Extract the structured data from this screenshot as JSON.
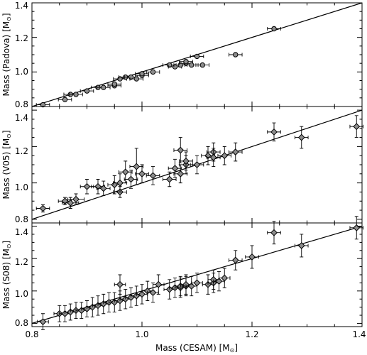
{
  "chart_data": {
    "type": "scatter",
    "x_range": [
      0.8,
      1.4
    ],
    "xlabel": "Mass (CESAM) [M",
    "xlabel_symbol": "⊙",
    "xlabel_suffix": "]",
    "x_ticks": [
      "0.8",
      "1.0",
      "1.2",
      "1.4"
    ],
    "reference_line": "y = x",
    "grid": false,
    "panels": [
      {
        "ylabel": "Mass (Padova) [M",
        "ylabel_symbol": "⊙",
        "ylabel_suffix": "]",
        "y_range": [
          0.8,
          1.4
        ],
        "y_ticks": [
          "0.8",
          "1.0",
          "1.2",
          "1.4"
        ],
        "marker": "circle",
        "points": [
          {
            "x": 0.82,
            "y": 0.81,
            "xerr": 0.012,
            "yerr": 0.005
          },
          {
            "x": 0.86,
            "y": 0.84,
            "xerr": 0.012,
            "yerr": 0.005
          },
          {
            "x": 0.87,
            "y": 0.87,
            "xerr": 0.012,
            "yerr": 0.005
          },
          {
            "x": 0.88,
            "y": 0.87,
            "xerr": 0.012,
            "yerr": 0.005
          },
          {
            "x": 0.9,
            "y": 0.89,
            "xerr": 0.012,
            "yerr": 0.005
          },
          {
            "x": 0.92,
            "y": 0.91,
            "xerr": 0.012,
            "yerr": 0.005
          },
          {
            "x": 0.93,
            "y": 0.91,
            "xerr": 0.012,
            "yerr": 0.005
          },
          {
            "x": 0.95,
            "y": 0.92,
            "xerr": 0.012,
            "yerr": 0.005
          },
          {
            "x": 0.95,
            "y": 0.93,
            "xerr": 0.012,
            "yerr": 0.005
          },
          {
            "x": 0.96,
            "y": 0.96,
            "xerr": 0.012,
            "yerr": 0.005
          },
          {
            "x": 0.97,
            "y": 0.97,
            "xerr": 0.012,
            "yerr": 0.005
          },
          {
            "x": 0.98,
            "y": 0.97,
            "xerr": 0.012,
            "yerr": 0.005
          },
          {
            "x": 0.99,
            "y": 0.96,
            "xerr": 0.012,
            "yerr": 0.005
          },
          {
            "x": 1.0,
            "y": 0.98,
            "xerr": 0.012,
            "yerr": 0.005
          },
          {
            "x": 1.0,
            "y": 0.99,
            "xerr": 0.012,
            "yerr": 0.005
          },
          {
            "x": 1.02,
            "y": 1.0,
            "xerr": 0.012,
            "yerr": 0.005
          },
          {
            "x": 1.05,
            "y": 1.04,
            "xerr": 0.012,
            "yerr": 0.005
          },
          {
            "x": 1.06,
            "y": 1.03,
            "xerr": 0.012,
            "yerr": 0.005
          },
          {
            "x": 1.07,
            "y": 1.04,
            "xerr": 0.012,
            "yerr": 0.005
          },
          {
            "x": 1.08,
            "y": 1.05,
            "xerr": 0.012,
            "yerr": 0.005
          },
          {
            "x": 1.08,
            "y": 1.06,
            "xerr": 0.012,
            "yerr": 0.005
          },
          {
            "x": 1.09,
            "y": 1.04,
            "xerr": 0.012,
            "yerr": 0.005
          },
          {
            "x": 1.1,
            "y": 1.09,
            "xerr": 0.012,
            "yerr": 0.005
          },
          {
            "x": 1.11,
            "y": 1.04,
            "xerr": 0.012,
            "yerr": 0.005
          },
          {
            "x": 1.17,
            "y": 1.1,
            "xerr": 0.012,
            "yerr": 0.005
          },
          {
            "x": 1.24,
            "y": 1.25,
            "xerr": 0.012,
            "yerr": 0.005
          }
        ]
      },
      {
        "ylabel": "Mass (V05) [M",
        "ylabel_symbol": "⊙",
        "ylabel_suffix": "]",
        "y_range": [
          0.78,
          1.42
        ],
        "y_ticks": [
          "0.8",
          "1.0",
          "1.2",
          "1.4"
        ],
        "marker": "diamond",
        "points": [
          {
            "x": 0.82,
            "y": 0.86,
            "xerr": 0.012,
            "yerr": 0.02
          },
          {
            "x": 0.86,
            "y": 0.9,
            "xerr": 0.012,
            "yerr": 0.02
          },
          {
            "x": 0.87,
            "y": 0.89,
            "xerr": 0.015,
            "yerr": 0.03
          },
          {
            "x": 0.88,
            "y": 0.91,
            "xerr": 0.015,
            "yerr": 0.03
          },
          {
            "x": 0.9,
            "y": 0.98,
            "xerr": 0.012,
            "yerr": 0.04
          },
          {
            "x": 0.92,
            "y": 0.98,
            "xerr": 0.012,
            "yerr": 0.04
          },
          {
            "x": 0.93,
            "y": 0.97,
            "xerr": 0.012,
            "yerr": 0.04
          },
          {
            "x": 0.95,
            "y": 0.99,
            "xerr": 0.012,
            "yerr": 0.05
          },
          {
            "x": 0.96,
            "y": 0.95,
            "xerr": 0.012,
            "yerr": 0.03
          },
          {
            "x": 0.96,
            "y": 1.0,
            "xerr": 0.012,
            "yerr": 0.05
          },
          {
            "x": 0.97,
            "y": 1.06,
            "xerr": 0.012,
            "yerr": 0.06
          },
          {
            "x": 0.98,
            "y": 1.02,
            "xerr": 0.012,
            "yerr": 0.05
          },
          {
            "x": 0.99,
            "y": 1.09,
            "xerr": 0.012,
            "yerr": 0.1
          },
          {
            "x": 1.0,
            "y": 1.05,
            "xerr": 0.012,
            "yerr": 0.05
          },
          {
            "x": 1.02,
            "y": 1.04,
            "xerr": 0.012,
            "yerr": 0.05
          },
          {
            "x": 1.05,
            "y": 1.02,
            "xerr": 0.012,
            "yerr": 0.04
          },
          {
            "x": 1.06,
            "y": 1.08,
            "xerr": 0.012,
            "yerr": 0.05
          },
          {
            "x": 1.07,
            "y": 1.05,
            "xerr": 0.012,
            "yerr": 0.05
          },
          {
            "x": 1.07,
            "y": 1.18,
            "xerr": 0.012,
            "yerr": 0.07
          },
          {
            "x": 1.08,
            "y": 1.1,
            "xerr": 0.012,
            "yerr": 0.05
          },
          {
            "x": 1.08,
            "y": 1.12,
            "xerr": 0.012,
            "yerr": 0.05
          },
          {
            "x": 1.1,
            "y": 1.1,
            "xerr": 0.012,
            "yerr": 0.05
          },
          {
            "x": 1.12,
            "y": 1.15,
            "xerr": 0.012,
            "yerr": 0.05
          },
          {
            "x": 1.13,
            "y": 1.17,
            "xerr": 0.012,
            "yerr": 0.05
          },
          {
            "x": 1.13,
            "y": 1.14,
            "xerr": 0.012,
            "yerr": 0.05
          },
          {
            "x": 1.15,
            "y": 1.15,
            "xerr": 0.012,
            "yerr": 0.05
          },
          {
            "x": 1.17,
            "y": 1.17,
            "xerr": 0.012,
            "yerr": 0.05
          },
          {
            "x": 1.24,
            "y": 1.28,
            "xerr": 0.012,
            "yerr": 0.05
          },
          {
            "x": 1.29,
            "y": 1.25,
            "xerr": 0.012,
            "yerr": 0.06
          },
          {
            "x": 1.39,
            "y": 1.31,
            "xerr": 0.012,
            "yerr": 0.06
          }
        ]
      },
      {
        "ylabel": "Mass (S08) [M",
        "ylabel_symbol": "⊙",
        "ylabel_suffix": "]",
        "y_range": [
          0.78,
          1.42
        ],
        "y_ticks": [
          "0.8",
          "1.0",
          "1.2",
          "1.4"
        ],
        "marker": "diamond",
        "points": [
          {
            "x": 0.82,
            "y": 0.81,
            "xerr": 0.01,
            "yerr": 0.05
          },
          {
            "x": 0.85,
            "y": 0.86,
            "xerr": 0.01,
            "yerr": 0.05
          },
          {
            "x": 0.86,
            "y": 0.86,
            "xerr": 0.01,
            "yerr": 0.05
          },
          {
            "x": 0.87,
            "y": 0.87,
            "xerr": 0.01,
            "yerr": 0.05
          },
          {
            "x": 0.88,
            "y": 0.88,
            "xerr": 0.01,
            "yerr": 0.05
          },
          {
            "x": 0.89,
            "y": 0.88,
            "xerr": 0.01,
            "yerr": 0.05
          },
          {
            "x": 0.9,
            "y": 0.89,
            "xerr": 0.01,
            "yerr": 0.05
          },
          {
            "x": 0.91,
            "y": 0.9,
            "xerr": 0.01,
            "yerr": 0.06
          },
          {
            "x": 0.92,
            "y": 0.91,
            "xerr": 0.01,
            "yerr": 0.06
          },
          {
            "x": 0.93,
            "y": 0.92,
            "xerr": 0.01,
            "yerr": 0.06
          },
          {
            "x": 0.94,
            "y": 0.93,
            "xerr": 0.01,
            "yerr": 0.06
          },
          {
            "x": 0.95,
            "y": 0.93,
            "xerr": 0.01,
            "yerr": 0.06
          },
          {
            "x": 0.96,
            "y": 0.94,
            "xerr": 0.01,
            "yerr": 0.06
          },
          {
            "x": 0.96,
            "y": 1.04,
            "xerr": 0.01,
            "yerr": 0.06
          },
          {
            "x": 0.97,
            "y": 0.95,
            "xerr": 0.01,
            "yerr": 0.06
          },
          {
            "x": 0.98,
            "y": 0.96,
            "xerr": 0.01,
            "yerr": 0.06
          },
          {
            "x": 0.99,
            "y": 0.97,
            "xerr": 0.01,
            "yerr": 0.06
          },
          {
            "x": 1.0,
            "y": 0.98,
            "xerr": 0.01,
            "yerr": 0.06
          },
          {
            "x": 1.01,
            "y": 1.0,
            "xerr": 0.01,
            "yerr": 0.06
          },
          {
            "x": 1.02,
            "y": 0.99,
            "xerr": 0.01,
            "yerr": 0.06
          },
          {
            "x": 1.03,
            "y": 1.04,
            "xerr": 0.01,
            "yerr": 0.06
          },
          {
            "x": 1.05,
            "y": 1.01,
            "xerr": 0.01,
            "yerr": 0.06
          },
          {
            "x": 1.06,
            "y": 1.02,
            "xerr": 0.01,
            "yerr": 0.06
          },
          {
            "x": 1.07,
            "y": 1.02,
            "xerr": 0.01,
            "yerr": 0.06
          },
          {
            "x": 1.07,
            "y": 1.03,
            "xerr": 0.01,
            "yerr": 0.06
          },
          {
            "x": 1.08,
            "y": 1.03,
            "xerr": 0.01,
            "yerr": 0.06
          },
          {
            "x": 1.08,
            "y": 1.04,
            "xerr": 0.01,
            "yerr": 0.06
          },
          {
            "x": 1.09,
            "y": 1.03,
            "xerr": 0.01,
            "yerr": 0.06
          },
          {
            "x": 1.1,
            "y": 1.05,
            "xerr": 0.01,
            "yerr": 0.06
          },
          {
            "x": 1.12,
            "y": 1.04,
            "xerr": 0.01,
            "yerr": 0.06
          },
          {
            "x": 1.13,
            "y": 1.05,
            "xerr": 0.01,
            "yerr": 0.06
          },
          {
            "x": 1.13,
            "y": 1.07,
            "xerr": 0.01,
            "yerr": 0.06
          },
          {
            "x": 1.14,
            "y": 1.06,
            "xerr": 0.01,
            "yerr": 0.06
          },
          {
            "x": 1.15,
            "y": 1.08,
            "xerr": 0.01,
            "yerr": 0.06
          },
          {
            "x": 1.17,
            "y": 1.19,
            "xerr": 0.012,
            "yerr": 0.06
          },
          {
            "x": 1.2,
            "y": 1.21,
            "xerr": 0.012,
            "yerr": 0.07
          },
          {
            "x": 1.24,
            "y": 1.36,
            "xerr": 0.012,
            "yerr": 0.07
          },
          {
            "x": 1.29,
            "y": 1.28,
            "xerr": 0.012,
            "yerr": 0.07
          },
          {
            "x": 1.39,
            "y": 1.39,
            "xerr": 0.012,
            "yerr": 0.07
          }
        ]
      }
    ]
  }
}
